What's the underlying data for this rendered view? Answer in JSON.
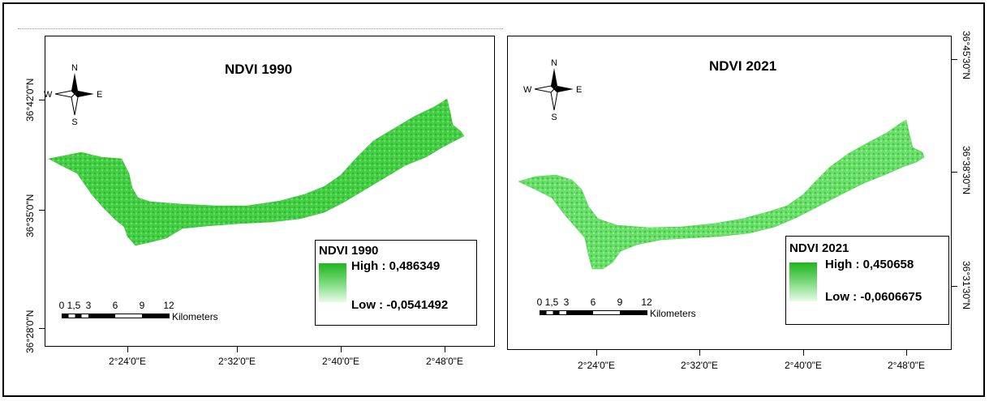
{
  "maps": [
    {
      "title": "NDVI 1990",
      "legend": {
        "title": "NDVI 1990",
        "high": "High : 0,486349",
        "low": "Low : -0,0541492"
      },
      "lat_labels": [
        "36°42'0\"N",
        "36°35'0\"N",
        "36°28'0\"N"
      ],
      "lon_labels": [
        "2°24'0\"E",
        "2°32'0\"E",
        "2°40'0\"E",
        "2°48'0\"E"
      ],
      "compass": {
        "n": "N",
        "s": "S",
        "e": "E",
        "w": "W"
      },
      "scale": {
        "ticks": [
          "0",
          "1,5",
          "3",
          "6",
          "9",
          "12"
        ],
        "unit": "Kilometers"
      },
      "fill_color": "#3fcf3f"
    },
    {
      "title": "NDVI 2021",
      "legend": {
        "title": "NDVI 2021",
        "high": "High : 0,450658",
        "low": "Low : -0,0606675"
      },
      "lat_labels": [
        "36°45'30\"N",
        "36°38'30\"N",
        "36°31'30\"N"
      ],
      "lon_labels": [
        "2°24'0\"E",
        "2°32'0\"E",
        "2°40'0\"E",
        "2°48'0\"E"
      ],
      "compass": {
        "n": "N",
        "s": "S",
        "e": "E",
        "w": "W"
      },
      "scale": {
        "ticks": [
          "0",
          "1,5",
          "3",
          "6",
          "9",
          "12"
        ],
        "unit": "Kilometers"
      },
      "fill_color": "#6be06b"
    }
  ],
  "colors": {
    "vegetation_dark": "#1fb61f",
    "vegetation_light": "#e8fbe8"
  }
}
